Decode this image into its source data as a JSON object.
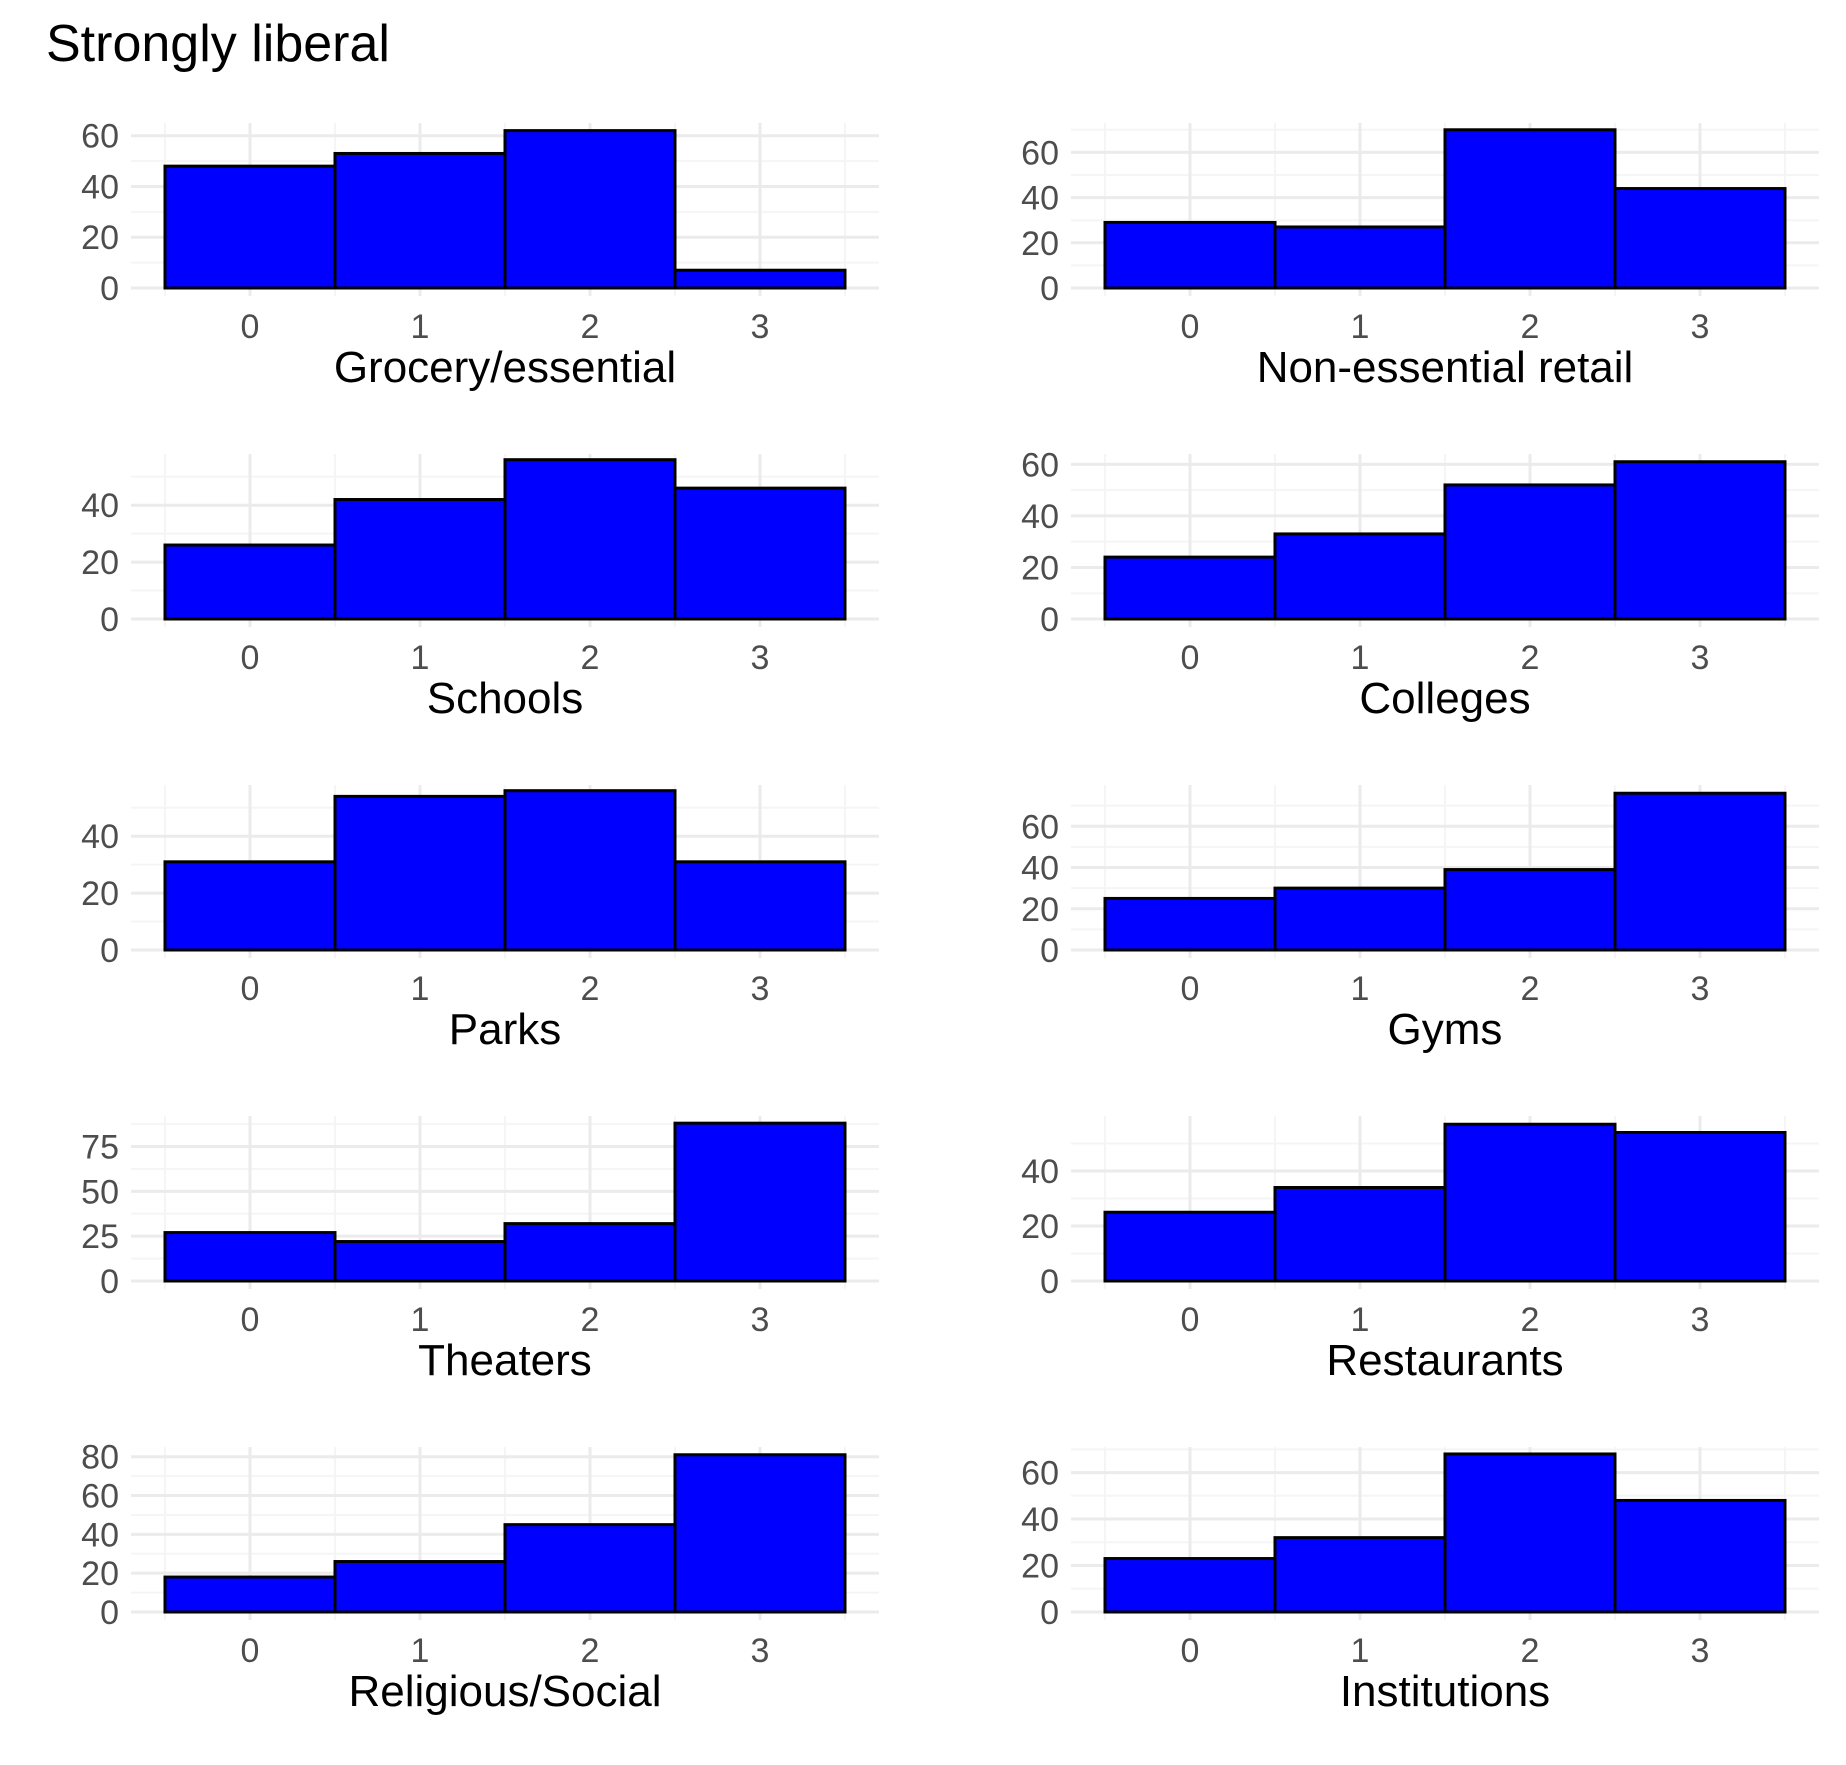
{
  "title": "Strongly liberal",
  "style": {
    "bar_fill": "#0000ff",
    "bar_stroke": "#000000",
    "grid_major": "#ebebeb",
    "grid_minor": "#f5f5f5",
    "tick_text": "#4d4d4d",
    "label_text": "#000000"
  },
  "chart_data": [
    {
      "type": "bar",
      "xlabel": "Grocery/essential",
      "categories": [
        "0",
        "1",
        "2",
        "3"
      ],
      "values": [
        48,
        53,
        62,
        7
      ],
      "ylim": [
        0,
        65
      ],
      "yticks": [
        0,
        20,
        40,
        60
      ],
      "grid": true
    },
    {
      "type": "bar",
      "xlabel": "Non-essential retail",
      "categories": [
        "0",
        "1",
        "2",
        "3"
      ],
      "values": [
        29,
        27,
        70,
        44
      ],
      "ylim": [
        0,
        73
      ],
      "yticks": [
        0,
        20,
        40,
        60
      ],
      "grid": true
    },
    {
      "type": "bar",
      "xlabel": "Schools",
      "categories": [
        "0",
        "1",
        "2",
        "3"
      ],
      "values": [
        26,
        42,
        56,
        46
      ],
      "ylim": [
        0,
        58
      ],
      "yticks": [
        0,
        20,
        40
      ],
      "grid": true
    },
    {
      "type": "bar",
      "xlabel": "Colleges",
      "categories": [
        "0",
        "1",
        "2",
        "3"
      ],
      "values": [
        24,
        33,
        52,
        61
      ],
      "ylim": [
        0,
        64
      ],
      "yticks": [
        0,
        20,
        40,
        60
      ],
      "grid": true
    },
    {
      "type": "bar",
      "xlabel": "Parks",
      "categories": [
        "0",
        "1",
        "2",
        "3"
      ],
      "values": [
        31,
        54,
        56,
        31
      ],
      "ylim": [
        0,
        58
      ],
      "yticks": [
        0,
        20,
        40
      ],
      "grid": true
    },
    {
      "type": "bar",
      "xlabel": "Gyms",
      "categories": [
        "0",
        "1",
        "2",
        "3"
      ],
      "values": [
        25,
        30,
        39,
        76
      ],
      "ylim": [
        0,
        80
      ],
      "yticks": [
        0,
        20,
        40,
        60
      ],
      "grid": true
    },
    {
      "type": "bar",
      "xlabel": "Theaters",
      "categories": [
        "0",
        "1",
        "2",
        "3"
      ],
      "values": [
        27,
        22,
        32,
        88
      ],
      "ylim": [
        0,
        92
      ],
      "yticks": [
        0,
        25,
        50,
        75
      ],
      "grid": true
    },
    {
      "type": "bar",
      "xlabel": "Restaurants",
      "categories": [
        "0",
        "1",
        "2",
        "3"
      ],
      "values": [
        25,
        34,
        57,
        54
      ],
      "ylim": [
        0,
        60
      ],
      "yticks": [
        0,
        20,
        40
      ],
      "grid": true
    },
    {
      "type": "bar",
      "xlabel": "Religious/Social",
      "categories": [
        "0",
        "1",
        "2",
        "3"
      ],
      "values": [
        18,
        26,
        45,
        81
      ],
      "ylim": [
        0,
        85
      ],
      "yticks": [
        0,
        20,
        40,
        60,
        80
      ],
      "grid": true
    },
    {
      "type": "bar",
      "xlabel": "Institutions",
      "categories": [
        "0",
        "1",
        "2",
        "3"
      ],
      "values": [
        23,
        32,
        68,
        48
      ],
      "ylim": [
        0,
        71
      ],
      "yticks": [
        0,
        20,
        40,
        60
      ],
      "grid": true
    }
  ]
}
